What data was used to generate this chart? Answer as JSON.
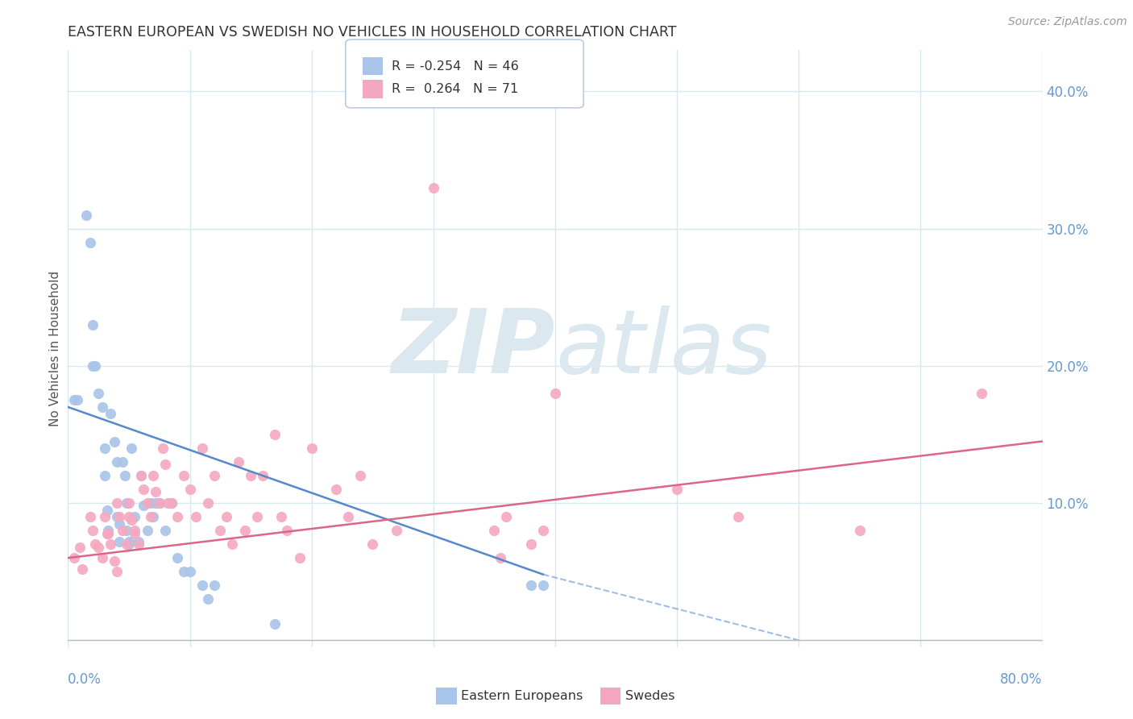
{
  "title": "EASTERN EUROPEAN VS SWEDISH NO VEHICLES IN HOUSEHOLD CORRELATION CHART",
  "source": "Source: ZipAtlas.com",
  "ylabel": "No Vehicles in Household",
  "xlim": [
    0.0,
    0.8
  ],
  "ylim": [
    -0.005,
    0.43
  ],
  "blue_R": -0.254,
  "blue_N": 46,
  "pink_R": 0.264,
  "pink_N": 71,
  "blue_color": "#a8c4e8",
  "pink_color": "#f4a8c0",
  "blue_line_color": "#5588cc",
  "pink_line_color": "#dd6688",
  "watermark_zip": "ZIP",
  "watermark_atlas": "atlas",
  "watermark_color": "#dce8f0",
  "background_color": "#ffffff",
  "grid_color": "#d8e8f0",
  "blue_scatter_x": [
    0.005,
    0.008,
    0.015,
    0.018,
    0.02,
    0.02,
    0.022,
    0.025,
    0.028,
    0.03,
    0.03,
    0.032,
    0.033,
    0.035,
    0.038,
    0.04,
    0.04,
    0.042,
    0.042,
    0.045,
    0.047,
    0.048,
    0.048,
    0.05,
    0.05,
    0.052,
    0.055,
    0.058,
    0.06,
    0.062,
    0.065,
    0.068,
    0.07,
    0.072,
    0.075,
    0.08,
    0.085,
    0.09,
    0.095,
    0.1,
    0.11,
    0.115,
    0.12,
    0.17,
    0.38,
    0.39
  ],
  "blue_scatter_y": [
    0.175,
    0.175,
    0.31,
    0.29,
    0.23,
    0.2,
    0.2,
    0.18,
    0.17,
    0.14,
    0.12,
    0.095,
    0.08,
    0.165,
    0.145,
    0.13,
    0.09,
    0.085,
    0.072,
    0.13,
    0.12,
    0.1,
    0.08,
    0.072,
    0.07,
    0.14,
    0.09,
    0.072,
    0.12,
    0.098,
    0.08,
    0.1,
    0.09,
    0.1,
    0.1,
    0.08,
    0.1,
    0.06,
    0.05,
    0.05,
    0.04,
    0.03,
    0.04,
    0.012,
    0.04,
    0.04
  ],
  "pink_scatter_x": [
    0.005,
    0.01,
    0.012,
    0.018,
    0.02,
    0.022,
    0.025,
    0.028,
    0.03,
    0.032,
    0.033,
    0.035,
    0.038,
    0.04,
    0.04,
    0.042,
    0.045,
    0.048,
    0.05,
    0.05,
    0.052,
    0.055,
    0.055,
    0.058,
    0.06,
    0.062,
    0.065,
    0.068,
    0.07,
    0.072,
    0.075,
    0.078,
    0.08,
    0.082,
    0.085,
    0.09,
    0.095,
    0.1,
    0.105,
    0.11,
    0.115,
    0.12,
    0.125,
    0.13,
    0.135,
    0.14,
    0.145,
    0.15,
    0.155,
    0.16,
    0.17,
    0.175,
    0.18,
    0.19,
    0.2,
    0.22,
    0.23,
    0.24,
    0.25,
    0.27,
    0.3,
    0.35,
    0.355,
    0.36,
    0.38,
    0.39,
    0.4,
    0.5,
    0.55,
    0.65,
    0.75
  ],
  "pink_scatter_y": [
    0.06,
    0.068,
    0.052,
    0.09,
    0.08,
    0.07,
    0.068,
    0.06,
    0.09,
    0.078,
    0.078,
    0.07,
    0.058,
    0.05,
    0.1,
    0.09,
    0.08,
    0.07,
    0.1,
    0.09,
    0.088,
    0.08,
    0.078,
    0.07,
    0.12,
    0.11,
    0.1,
    0.09,
    0.12,
    0.108,
    0.1,
    0.14,
    0.128,
    0.1,
    0.1,
    0.09,
    0.12,
    0.11,
    0.09,
    0.14,
    0.1,
    0.12,
    0.08,
    0.09,
    0.07,
    0.13,
    0.08,
    0.12,
    0.09,
    0.12,
    0.15,
    0.09,
    0.08,
    0.06,
    0.14,
    0.11,
    0.09,
    0.12,
    0.07,
    0.08,
    0.33,
    0.08,
    0.06,
    0.09,
    0.07,
    0.08,
    0.18,
    0.11,
    0.09,
    0.08,
    0.18
  ],
  "blue_line_start_x": 0.0,
  "blue_line_start_y": 0.17,
  "blue_line_solid_end_x": 0.39,
  "blue_line_solid_end_y": 0.048,
  "blue_line_dash_end_x": 0.6,
  "blue_line_dash_end_y": 0.0,
  "pink_line_start_x": 0.0,
  "pink_line_start_y": 0.06,
  "pink_line_end_x": 0.8,
  "pink_line_end_y": 0.145
}
